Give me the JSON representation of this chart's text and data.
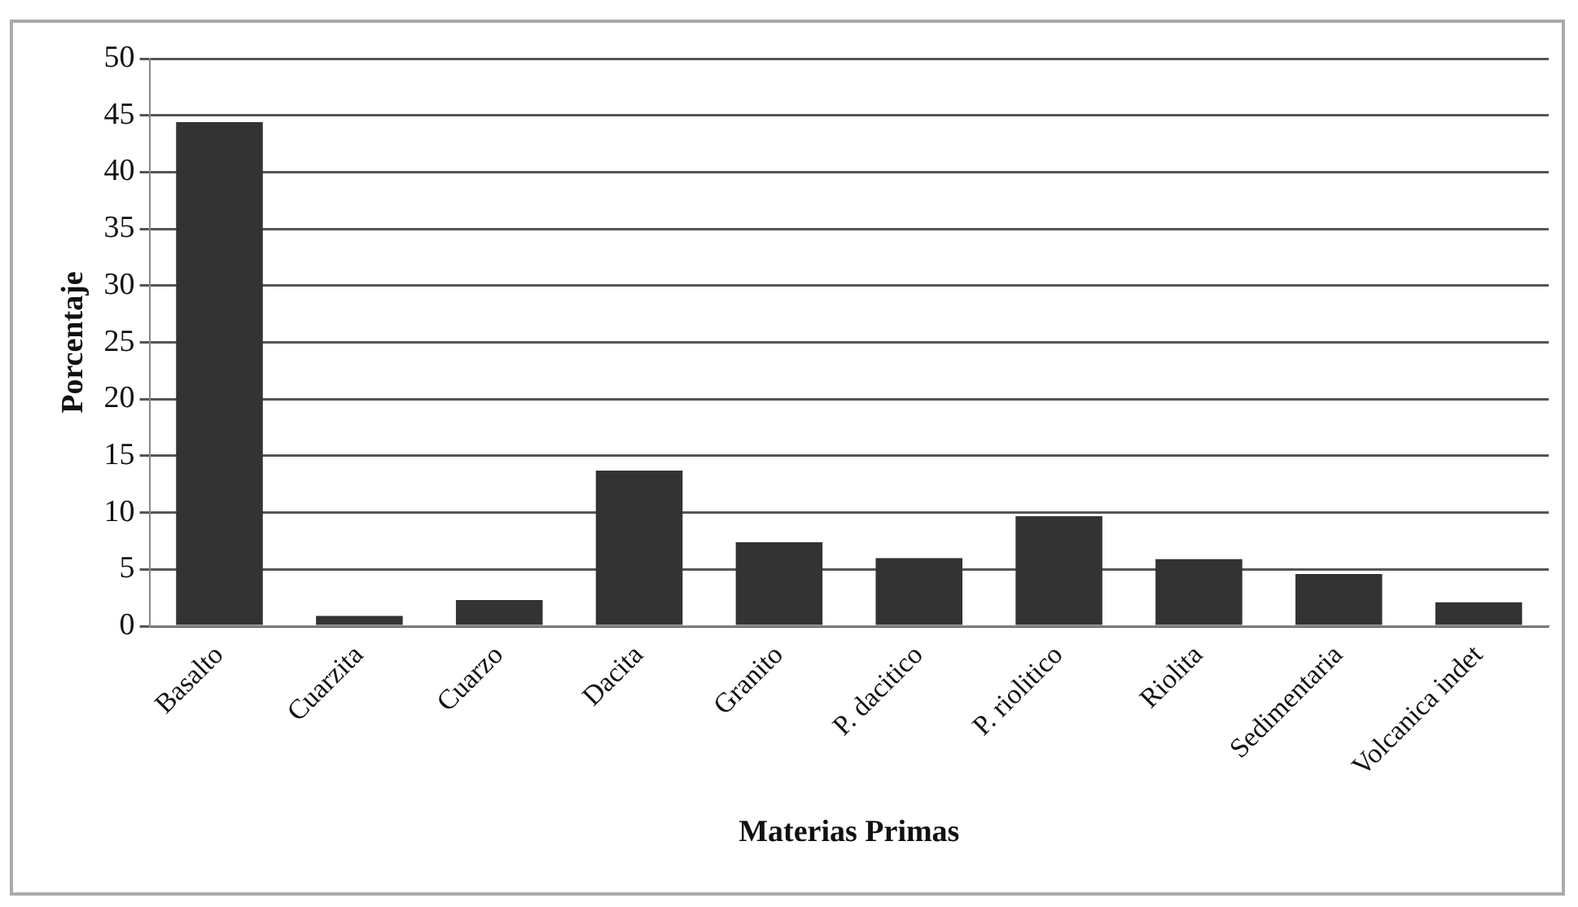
{
  "chart_data": {
    "type": "bar",
    "xlabel": "Materias Primas",
    "ylabel": "Porcentaje",
    "categories": [
      "Basalto",
      "Cuarzita",
      "Cuarzo",
      "Dacita",
      "Granito",
      "P. dacitico",
      "P. riolitico",
      "Riolita",
      "Sedimentaria",
      "Volcanica indet"
    ],
    "values": [
      44.4,
      0.9,
      2.3,
      13.7,
      7.4,
      6.0,
      9.7,
      5.9,
      4.6,
      2.1
    ],
    "color": "#333333",
    "ylim": [
      0,
      50
    ],
    "yticks": [
      0,
      5,
      10,
      15,
      20,
      25,
      30,
      35,
      40,
      45,
      50
    ],
    "grid": "y",
    "legend": false
  }
}
